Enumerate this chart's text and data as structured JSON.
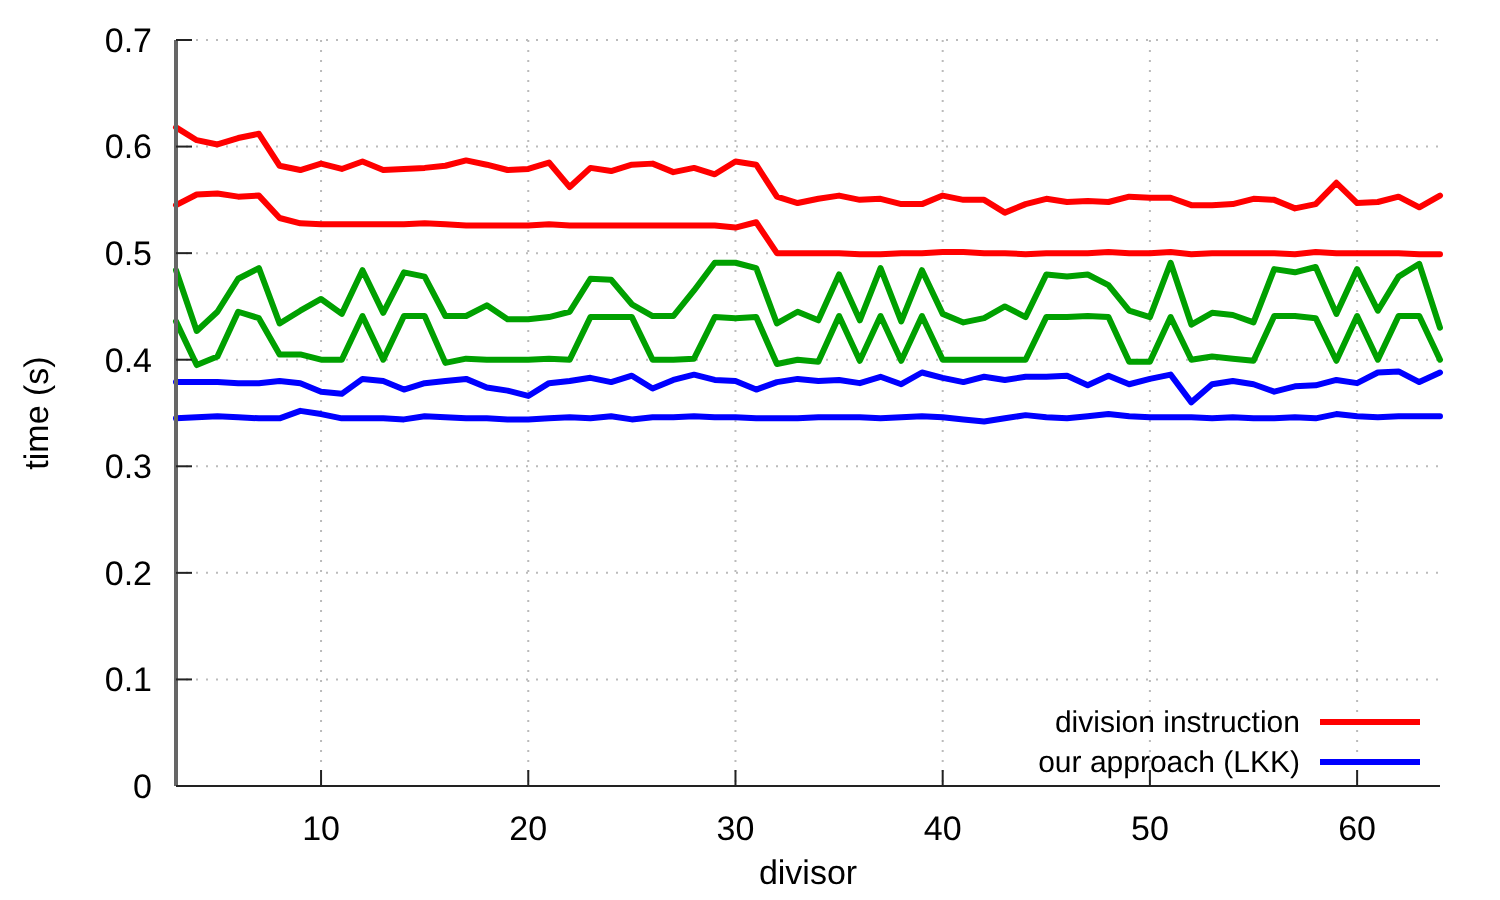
{
  "chart_data": {
    "type": "line",
    "xlabel": "divisor",
    "ylabel": "time (s)",
    "xlim": [
      3,
      64
    ],
    "xticks": [
      10,
      20,
      30,
      40,
      50,
      60
    ],
    "ylim": [
      0,
      0.7
    ],
    "yticks": [
      0,
      0.1,
      0.2,
      0.3,
      0.4,
      0.5,
      0.6,
      0.7
    ],
    "grid": true,
    "legend": "bottom right",
    "line_style": "solid",
    "marker": "none",
    "x": [
      3,
      4,
      5,
      6,
      7,
      8,
      9,
      10,
      11,
      12,
      13,
      14,
      15,
      16,
      17,
      18,
      19,
      20,
      21,
      22,
      23,
      24,
      25,
      26,
      27,
      28,
      29,
      30,
      31,
      32,
      33,
      34,
      35,
      36,
      37,
      38,
      39,
      40,
      41,
      42,
      43,
      44,
      45,
      46,
      47,
      48,
      49,
      50,
      51,
      52,
      53,
      54,
      55,
      56,
      57,
      58,
      59,
      60,
      61,
      62,
      63,
      64
    ],
    "series": [
      {
        "color": "#ff0000",
        "values": [
          0.618,
          0.606,
          0.602,
          0.608,
          0.612,
          0.582,
          0.578,
          0.584,
          0.579,
          0.586,
          0.578,
          0.579,
          0.58,
          0.582,
          0.587,
          0.583,
          0.578,
          0.579,
          0.585,
          0.562,
          0.58,
          0.577,
          0.583,
          0.584,
          0.576,
          0.58,
          0.574,
          0.586,
          0.583,
          0.553,
          0.547,
          0.551,
          0.554,
          0.55,
          0.551,
          0.546,
          0.546,
          0.554,
          0.55,
          0.55,
          0.538,
          0.546,
          0.551,
          0.548,
          0.549,
          0.548,
          0.553,
          0.552,
          0.552,
          0.545,
          0.545,
          0.546,
          0.551,
          0.55,
          0.542,
          0.546,
          0.566,
          0.547,
          0.548,
          0.553,
          0.543,
          0.554
        ]
      },
      {
        "name": "division instruction",
        "color": "#ff0000",
        "values": [
          0.545,
          0.555,
          0.556,
          0.553,
          0.554,
          0.533,
          0.528,
          0.527,
          0.527,
          0.527,
          0.527,
          0.527,
          0.528,
          0.527,
          0.526,
          0.526,
          0.526,
          0.526,
          0.527,
          0.526,
          0.526,
          0.526,
          0.526,
          0.526,
          0.526,
          0.526,
          0.526,
          0.524,
          0.529,
          0.5,
          0.5,
          0.5,
          0.5,
          0.499,
          0.499,
          0.5,
          0.5,
          0.501,
          0.501,
          0.5,
          0.5,
          0.499,
          0.5,
          0.5,
          0.5,
          0.501,
          0.5,
          0.5,
          0.501,
          0.499,
          0.5,
          0.5,
          0.5,
          0.5,
          0.499,
          0.501,
          0.5,
          0.5,
          0.5,
          0.5,
          0.499,
          0.499
        ]
      },
      {
        "color": "#00a000",
        "values": [
          0.484,
          0.427,
          0.445,
          0.476,
          0.486,
          0.434,
          0.446,
          0.457,
          0.443,
          0.484,
          0.444,
          0.482,
          0.478,
          0.441,
          0.441,
          0.451,
          0.438,
          0.438,
          0.44,
          0.445,
          0.476,
          0.475,
          0.452,
          0.441,
          0.441,
          0.465,
          0.491,
          0.491,
          0.486,
          0.434,
          0.445,
          0.437,
          0.48,
          0.437,
          0.486,
          0.436,
          0.484,
          0.443,
          0.435,
          0.439,
          0.45,
          0.44,
          0.48,
          0.478,
          0.48,
          0.47,
          0.446,
          0.44,
          0.491,
          0.433,
          0.444,
          0.442,
          0.435,
          0.485,
          0.482,
          0.487,
          0.443,
          0.485,
          0.446,
          0.478,
          0.49,
          0.43
        ]
      },
      {
        "color": "#00a000",
        "values": [
          0.436,
          0.395,
          0.403,
          0.445,
          0.439,
          0.405,
          0.405,
          0.4,
          0.4,
          0.441,
          0.4,
          0.441,
          0.441,
          0.397,
          0.401,
          0.4,
          0.4,
          0.4,
          0.401,
          0.4,
          0.44,
          0.44,
          0.44,
          0.4,
          0.4,
          0.401,
          0.44,
          0.439,
          0.44,
          0.396,
          0.4,
          0.398,
          0.441,
          0.399,
          0.441,
          0.399,
          0.441,
          0.4,
          0.4,
          0.4,
          0.4,
          0.4,
          0.44,
          0.44,
          0.441,
          0.44,
          0.398,
          0.398,
          0.44,
          0.4,
          0.403,
          0.401,
          0.399,
          0.441,
          0.441,
          0.439,
          0.399,
          0.441,
          0.4,
          0.441,
          0.441,
          0.4
        ]
      },
      {
        "name": "our approach (LKK)",
        "color": "#0000ff",
        "values": [
          0.379,
          0.379,
          0.379,
          0.378,
          0.378,
          0.38,
          0.378,
          0.37,
          0.368,
          0.382,
          0.38,
          0.372,
          0.378,
          0.38,
          0.382,
          0.374,
          0.371,
          0.366,
          0.378,
          0.38,
          0.383,
          0.379,
          0.385,
          0.373,
          0.381,
          0.386,
          0.381,
          0.38,
          0.372,
          0.379,
          0.382,
          0.38,
          0.381,
          0.378,
          0.384,
          0.377,
          0.388,
          0.383,
          0.379,
          0.384,
          0.381,
          0.384,
          0.384,
          0.385,
          0.376,
          0.385,
          0.377,
          0.382,
          0.386,
          0.36,
          0.377,
          0.38,
          0.377,
          0.37,
          0.375,
          0.376,
          0.381,
          0.378,
          0.388,
          0.389,
          0.379,
          0.388
        ]
      },
      {
        "color": "#0000ff",
        "values": [
          0.345,
          0.346,
          0.347,
          0.346,
          0.345,
          0.345,
          0.352,
          0.349,
          0.345,
          0.345,
          0.345,
          0.344,
          0.347,
          0.346,
          0.345,
          0.345,
          0.344,
          0.344,
          0.345,
          0.346,
          0.345,
          0.347,
          0.344,
          0.346,
          0.346,
          0.347,
          0.346,
          0.346,
          0.345,
          0.345,
          0.345,
          0.346,
          0.346,
          0.346,
          0.345,
          0.346,
          0.347,
          0.346,
          0.344,
          0.342,
          0.345,
          0.348,
          0.346,
          0.345,
          0.347,
          0.349,
          0.347,
          0.346,
          0.346,
          0.346,
          0.345,
          0.346,
          0.345,
          0.345,
          0.346,
          0.345,
          0.349,
          0.347,
          0.346,
          0.347,
          0.347,
          0.347
        ]
      }
    ]
  }
}
